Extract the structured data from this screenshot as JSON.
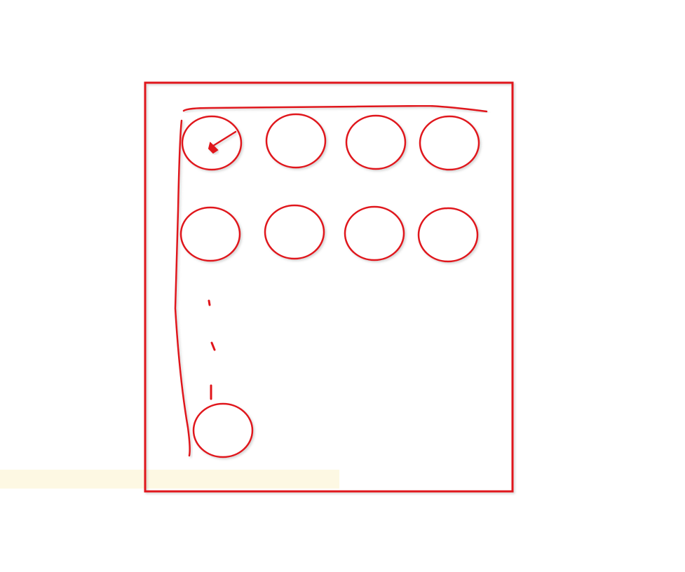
{
  "diagram": {
    "stroke_color": "#e0141a",
    "highlight_color": "#fdf8e3",
    "rows": [
      {
        "row": 1,
        "nodes": 4
      },
      {
        "row": 2,
        "nodes": 4
      }
    ],
    "last_row_nodes": 1,
    "has_continuation_dots": true
  }
}
